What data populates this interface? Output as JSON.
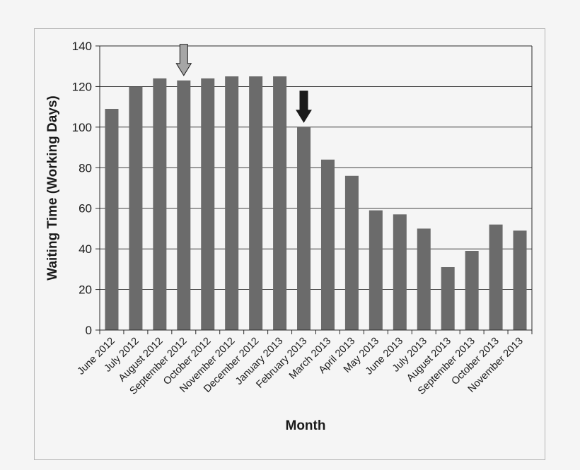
{
  "chart_data": {
    "type": "bar",
    "title": "",
    "xlabel": "Month",
    "ylabel": "Waiting Time (Working Days)",
    "ylim": [
      0,
      140
    ],
    "yticks": [
      0,
      20,
      40,
      60,
      80,
      100,
      120,
      140
    ],
    "grid": true,
    "categories": [
      "June 2012",
      "July 2012",
      "August 2012",
      "September 2012",
      "October 2012",
      "November 2012",
      "December 2012",
      "January 2013",
      "February 2013",
      "March 2013",
      "April 2013",
      "May 2013",
      "June 2013",
      "July 2013",
      "August 2013",
      "September 2013",
      "October 2013",
      "November 2013"
    ],
    "values": [
      109,
      120,
      124,
      123,
      124,
      125,
      125,
      125,
      100,
      84,
      76,
      59,
      57,
      50,
      31,
      39,
      52,
      49
    ],
    "bar_color": "#6b6b6b",
    "annotations": [
      {
        "type": "arrow-down",
        "category": "September 2012",
        "fill": "#a6a6a6"
      },
      {
        "type": "arrow-down",
        "category": "February 2013",
        "fill": "#1a1a1a"
      }
    ]
  }
}
